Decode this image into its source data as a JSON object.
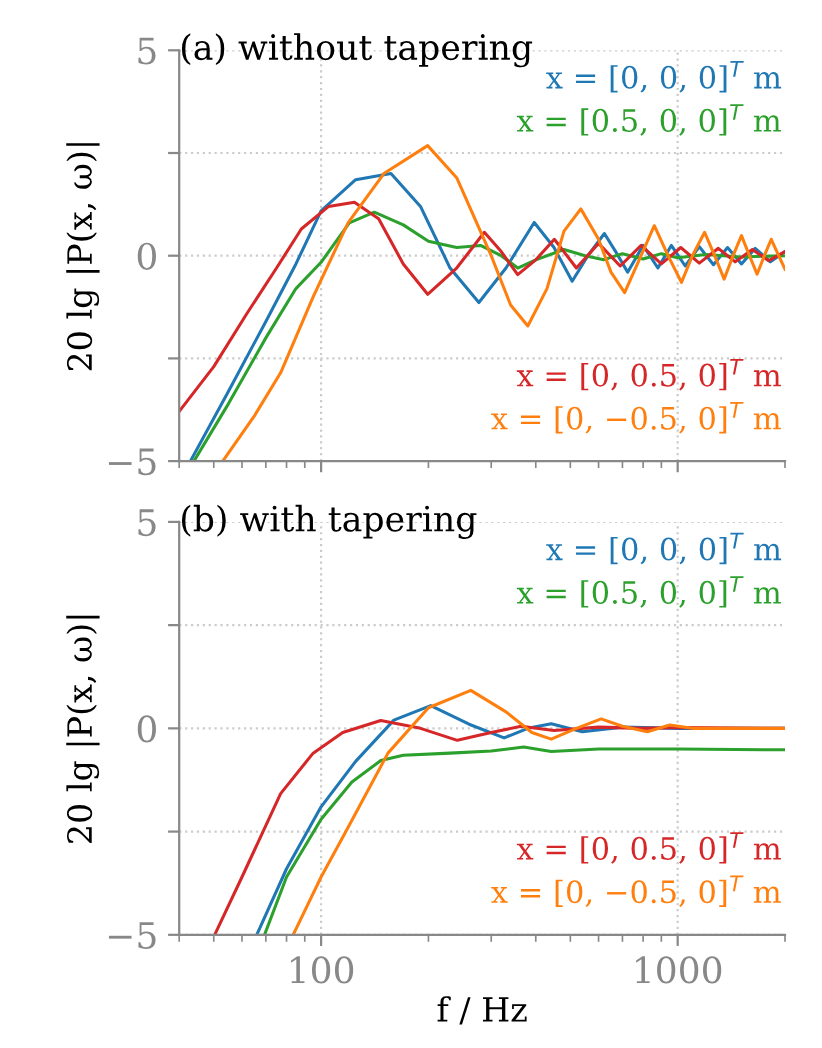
{
  "chart_data": [
    {
      "type": "line",
      "title": "(a) without tapering",
      "ylabel": "20 lg |P(x, ω)|",
      "log": "x",
      "xlim": [
        40,
        2000
      ],
      "xticks": [
        100,
        1000
      ],
      "ylim": [
        -5,
        5
      ],
      "yticks": [
        {
          "value": -5,
          "label": "−5"
        },
        {
          "value": -2.5,
          "label": null
        },
        0,
        {
          "value": 2.5,
          "label": null
        },
        5
      ],
      "grid": true,
      "tick_labels": "y",
      "series": [
        {
          "name": "x = [0, 0, 0]$^{T}$ m",
          "color": "#1f77b4",
          "x": [
            43,
            55,
            70,
            85,
            100,
            125,
            157,
            190,
            230,
            277,
            330,
            396,
            450,
            506,
            560,
            623,
            670,
            724,
            800,
            880,
            960,
            1050,
            1150,
            1260,
            1380,
            1510,
            1650,
            1820,
            2000
          ],
          "values": [
            -5,
            -3.3,
            -1.6,
            -0.2,
            1.09,
            1.85,
            2.0,
            1.2,
            -0.3,
            -1.14,
            -0.3,
            0.81,
            0.2,
            -0.62,
            0,
            0.54,
            0.1,
            -0.4,
            0.25,
            -0.3,
            0.25,
            -0.25,
            0.22,
            -0.22,
            0.2,
            -0.2,
            0.18,
            -0.15,
            0.1
          ]
        },
        {
          "name": "x = [0.5, 0, 0]$^{T}$ m",
          "color": "#2ca02c",
          "x": [
            44,
            55,
            70,
            85,
            100,
            120,
            141,
            170,
            200,
            240,
            280,
            320,
            356,
            400,
            480,
            550,
            620,
            700,
            800,
            900,
            1000,
            1200,
            1500,
            2000
          ],
          "values": [
            -5,
            -3.6,
            -2.0,
            -0.8,
            -0.16,
            0.8,
            1.06,
            0.75,
            0.35,
            0.2,
            0.25,
            0.0,
            -0.3,
            -0.1,
            0.15,
            0.0,
            -0.1,
            0.05,
            -0.08,
            0.05,
            -0.05,
            0.03,
            -0.03,
            0.0
          ]
        },
        {
          "name": "x = [0, 0.5, 0]$^{T}$ m",
          "color": "#d62728",
          "x": [
            40,
            50,
            62,
            75,
            88,
            105,
            124,
            145,
            170,
            199,
            240,
            287,
            320,
            356,
            400,
            451,
            520,
            600,
            690,
            790,
            900,
            1020,
            1150,
            1300,
            1450,
            1620,
            1800,
            2000
          ],
          "values": [
            -3.79,
            -2.7,
            -1.4,
            -0.3,
            0.65,
            1.2,
            1.3,
            0.9,
            -0.2,
            -0.94,
            -0.3,
            0.57,
            0.1,
            -0.46,
            -0.1,
            0.4,
            -0.3,
            0.3,
            -0.25,
            0.25,
            -0.2,
            0.2,
            -0.18,
            0.18,
            -0.15,
            0.15,
            -0.12,
            0.1
          ]
        },
        {
          "name": "x = [0, −0.5, 0]$^{T}$ m",
          "color": "#ff7f0e",
          "x": [
            53,
            65,
            77,
            95,
            119,
            150,
            199,
            240,
            300,
            340,
            380,
            430,
            480,
            535,
            600,
            650,
            710,
            780,
            860,
            940,
            1025,
            1100,
            1190,
            1270,
            1350,
            1430,
            1510,
            1590,
            1670,
            1750,
            1830,
            1920,
            2000
          ],
          "values": [
            -5,
            -3.9,
            -2.85,
            -1.0,
            0.8,
            2.0,
            2.68,
            1.9,
            0.0,
            -1.2,
            -1.71,
            -0.8,
            0.6,
            1.14,
            0.4,
            -0.4,
            -0.9,
            -0.1,
            0.73,
            0.0,
            -0.65,
            0,
            0.57,
            0,
            -0.57,
            0,
            0.49,
            0,
            -0.45,
            0,
            0.4,
            0,
            -0.33
          ]
        }
      ]
    },
    {
      "type": "line",
      "title": "(b) with tapering",
      "xlabel": "f / Hz",
      "ylabel": "20 lg |P(x, ω)|",
      "log": "x",
      "xlim": [
        40,
        2000
      ],
      "xticks": [
        100,
        1000
      ],
      "ylim": [
        -5,
        5
      ],
      "yticks": [
        {
          "value": -5,
          "label": "−5"
        },
        {
          "value": -2.5,
          "label": null
        },
        0,
        {
          "value": 2.5,
          "label": null
        },
        5
      ],
      "grid": true,
      "series": [
        {
          "name": "x = [0, 0, 0]$^{T}$ m",
          "color": "#1f77b4",
          "x": [
            66,
            80,
            100,
            125,
            160,
            203,
            260,
            326,
            380,
            442,
            540,
            700,
            1000,
            2000
          ],
          "values": [
            -5,
            -3.4,
            -1.9,
            -0.8,
            0.2,
            0.55,
            0.1,
            -0.23,
            0,
            0.11,
            -0.08,
            0.03,
            0,
            0
          ]
        },
        {
          "name": "x = [0.5, 0, 0]$^{T}$ m",
          "color": "#2ca02c",
          "x": [
            69.4,
            80,
            100,
            122,
            147,
            170,
            230,
            300,
            370,
            442,
            600,
            1000,
            2000
          ],
          "values": [
            -5,
            -3.6,
            -2.2,
            -1.3,
            -0.78,
            -0.65,
            -0.6,
            -0.55,
            -0.45,
            -0.56,
            -0.5,
            -0.5,
            -0.52
          ]
        },
        {
          "name": "x = [0, 0.5, 0]$^{T}$ m",
          "color": "#d62728",
          "x": [
            50.3,
            60,
            77,
            95,
            115,
            147,
            190,
            241,
            300,
            364,
            450,
            600,
            800,
            1000,
            2000
          ],
          "values": [
            -5,
            -3.6,
            -1.58,
            -0.6,
            -0.1,
            0.19,
            0.0,
            -0.29,
            -0.1,
            0.05,
            -0.05,
            0.03,
            0.0,
            0.02,
            0.0
          ]
        },
        {
          "name": "x = [0, −0.5, 0]$^{T}$ m",
          "color": "#ff7f0e",
          "x": [
            83.5,
            100,
            119,
            154,
            200,
            263,
            330,
            390,
            442,
            520,
            610,
            700,
            822,
            950,
            1100,
            2000
          ],
          "values": [
            -5,
            -3.6,
            -2.4,
            -0.6,
            0.5,
            0.92,
            0.4,
            -0.1,
            -0.26,
            0.0,
            0.23,
            0.05,
            -0.08,
            0.08,
            0,
            0
          ]
        }
      ]
    }
  ]
}
